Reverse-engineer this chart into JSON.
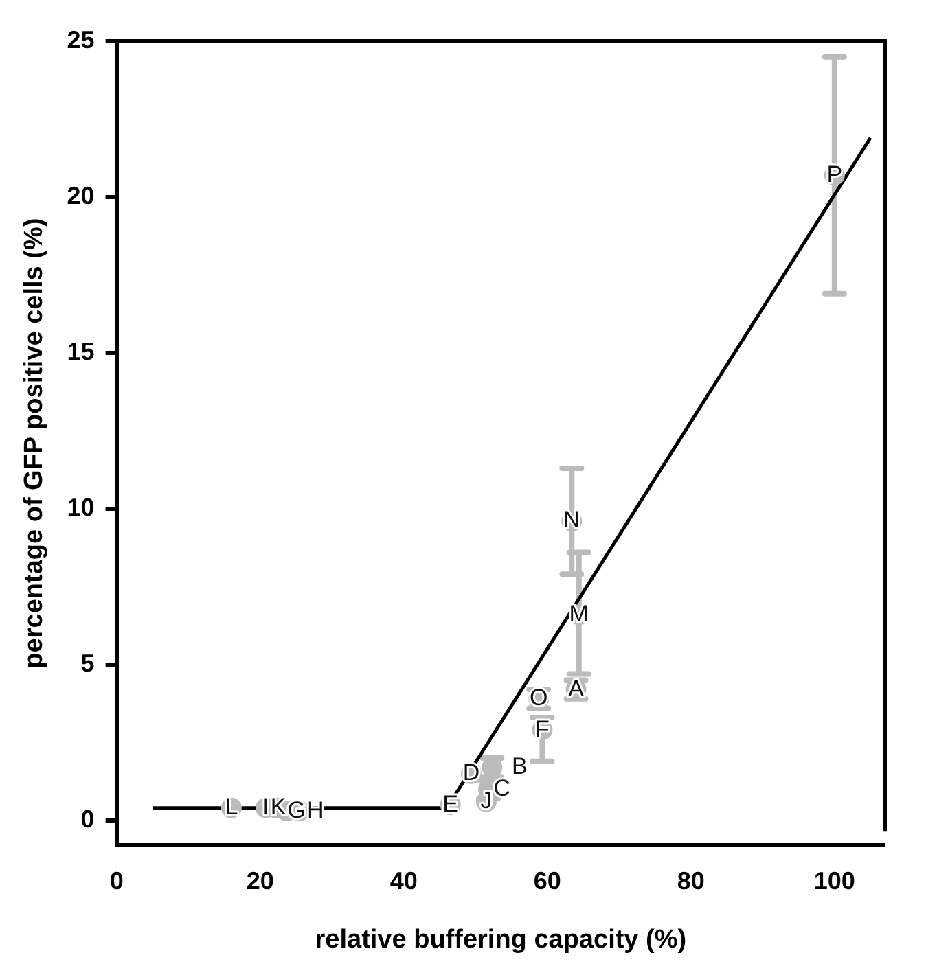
{
  "chart_data": {
    "type": "scatter",
    "xlabel": "relative buffering capacity (%)",
    "ylabel": "percentage of GFP positive cells (%)",
    "xlim": [
      0,
      107
    ],
    "xticks": [
      0,
      20,
      40,
      60,
      80,
      100
    ],
    "ylim": [
      -0.8,
      25
    ],
    "yticks": [
      0,
      5,
      10,
      15,
      20,
      25
    ],
    "grid": false,
    "legend": false,
    "series": [
      {
        "color": "#bbbbbb",
        "x": [
          64,
          52.3,
          51.8,
          49.4,
          46.5,
          59.3,
          23.7,
          25.5,
          20.8,
          51.5,
          22.2,
          16,
          64.4,
          63.4,
          58.8,
          100
        ],
        "values": [
          4.2,
          1.7,
          1.0,
          1.5,
          0.5,
          2.9,
          0.3,
          0.3,
          0.4,
          0.6,
          0.4,
          0.4,
          6.6,
          9.6,
          3.9,
          20.7
        ],
        "errors": [
          0.3,
          0.3,
          0.3,
          null,
          null,
          [
            1.9,
            3.3
          ],
          null,
          null,
          null,
          null,
          null,
          null,
          [
            4.7,
            8.6
          ],
          [
            7.9,
            11.3
          ],
          0.3,
          [
            16.9,
            24.5
          ]
        ],
        "value_labels": [
          "A",
          "B",
          "C",
          "D",
          "E",
          "F",
          "G",
          "H",
          "I",
          "J",
          "K",
          "L",
          "M",
          "N",
          "O",
          "P"
        ]
      },
      {
        "type": "line",
        "color": "#000000",
        "x": [
          5,
          46,
          105
        ],
        "values": [
          0.4,
          0.4,
          21.9
        ]
      }
    ]
  }
}
